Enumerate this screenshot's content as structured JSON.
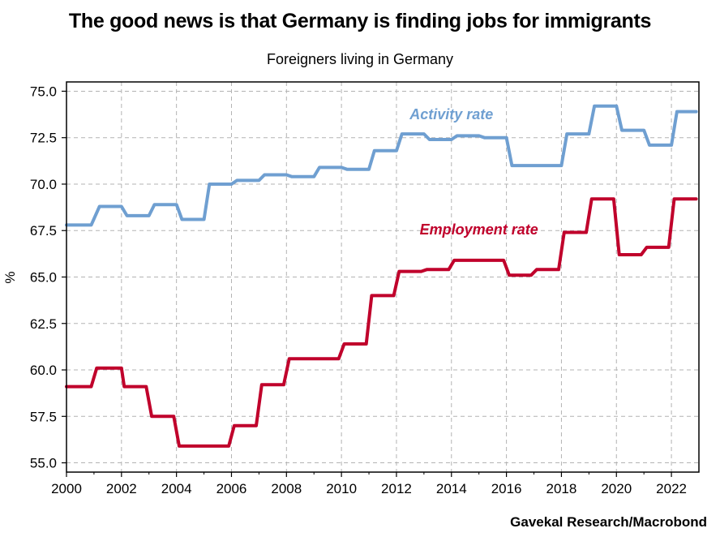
{
  "chart_data": {
    "type": "line",
    "title": "The good news is that Germany is finding jobs for immigrants",
    "subtitle": "Foreigners living in Germany",
    "ylabel": "%",
    "xlabel": "",
    "source": "Gavekal Research/Macrobond",
    "xlim": [
      2000,
      2023
    ],
    "ylim": [
      54.5,
      75.5
    ],
    "x_ticks": [
      "2000",
      "2002",
      "2004",
      "2006",
      "2008",
      "2010",
      "2012",
      "2014",
      "2016",
      "2018",
      "2020",
      "2022"
    ],
    "y_ticks": [
      "55.0",
      "57.5",
      "60.0",
      "62.5",
      "65.0",
      "67.5",
      "70.0",
      "72.5",
      "75.0"
    ],
    "grid": true,
    "series": [
      {
        "name": "Activity rate",
        "color": "#6f9fd1",
        "x": [
          2000.0,
          2000.9,
          2001.2,
          2002.0,
          2002.2,
          2003.0,
          2003.2,
          2004.0,
          2004.2,
          2005.0,
          2005.2,
          2006.0,
          2006.2,
          2007.0,
          2007.2,
          2008.0,
          2008.2,
          2009.0,
          2009.2,
          2010.0,
          2010.2,
          2011.0,
          2011.2,
          2012.0,
          2012.2,
          2013.0,
          2013.2,
          2014.0,
          2014.2,
          2015.0,
          2015.2,
          2016.0,
          2016.2,
          2018.0,
          2018.2,
          2019.0,
          2019.2,
          2020.0,
          2020.2,
          2021.0,
          2021.2,
          2022.0,
          2022.2,
          2022.9
        ],
        "values": [
          67.8,
          67.8,
          68.8,
          68.8,
          68.3,
          68.3,
          68.9,
          68.9,
          68.1,
          68.1,
          70.0,
          70.0,
          70.2,
          70.2,
          70.5,
          70.5,
          70.4,
          70.4,
          70.9,
          70.9,
          70.8,
          70.8,
          71.8,
          71.8,
          72.7,
          72.7,
          72.4,
          72.4,
          72.6,
          72.6,
          72.5,
          72.5,
          71.0,
          71.0,
          72.7,
          72.7,
          74.2,
          74.2,
          72.9,
          72.9,
          72.1,
          72.1,
          73.9,
          73.9
        ]
      },
      {
        "name": "Employment rate",
        "color": "#c0002b",
        "x": [
          2000.0,
          2000.9,
          2001.1,
          2002.0,
          2002.1,
          2002.9,
          2003.1,
          2003.9,
          2004.1,
          2005.9,
          2006.1,
          2006.9,
          2007.1,
          2007.9,
          2008.1,
          2009.9,
          2010.1,
          2010.9,
          2011.1,
          2011.9,
          2012.1,
          2012.9,
          2013.1,
          2013.9,
          2014.1,
          2015.9,
          2016.1,
          2016.9,
          2017.1,
          2017.9,
          2018.1,
          2018.9,
          2019.1,
          2019.9,
          2020.1,
          2020.9,
          2021.1,
          2021.9,
          2022.1,
          2022.9
        ],
        "values": [
          59.1,
          59.1,
          60.1,
          60.1,
          59.1,
          59.1,
          57.5,
          57.5,
          55.9,
          55.9,
          57.0,
          57.0,
          59.2,
          59.2,
          60.6,
          60.6,
          61.4,
          61.4,
          64.0,
          64.0,
          65.3,
          65.3,
          65.4,
          65.4,
          65.9,
          65.9,
          65.1,
          65.1,
          65.4,
          65.4,
          67.4,
          67.4,
          69.2,
          69.2,
          66.2,
          66.2,
          66.6,
          66.6,
          69.2,
          69.2
        ]
      }
    ],
    "annotations": [
      {
        "text": "Activity rate",
        "series": "Activity rate",
        "x": 2014.0,
        "y": 73.5
      },
      {
        "text": "Employment rate",
        "series": "Employment rate",
        "x": 2015.0,
        "y": 67.3
      }
    ]
  }
}
